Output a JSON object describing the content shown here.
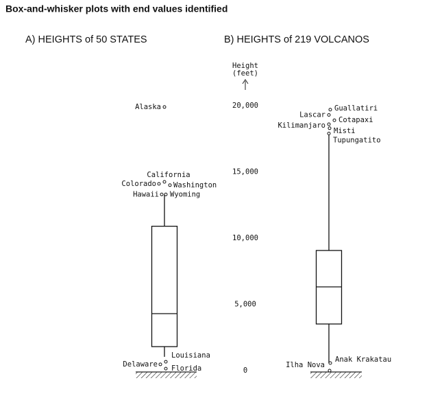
{
  "title": "Box-and-whisker plots with end values identified",
  "chart_data": [
    {
      "type": "box",
      "title": "A) HEIGHTS of 50 STATES",
      "ylim": [
        0,
        20000
      ],
      "lower_whisker": 1040,
      "q1": 1810,
      "median": 4300,
      "q3": 10900,
      "upper_whisker": 13300,
      "points": [
        {
          "name": "Alaska",
          "value": 19900
        },
        {
          "name": "California",
          "value": 14250
        },
        {
          "name": "Colorado",
          "value": 14100
        },
        {
          "name": "Washington",
          "value": 14000
        },
        {
          "name": "Hawaii",
          "value": 13300
        },
        {
          "name": "Wyoming",
          "value": 13300
        },
        {
          "name": "Louisiana",
          "value": 670
        },
        {
          "name": "Delaware",
          "value": 470
        },
        {
          "name": "Florida",
          "value": 150
        }
      ]
    },
    {
      "type": "box",
      "title": "B) HEIGHTS of 219 VOLCANOS",
      "ylim": [
        0,
        20000
      ],
      "ylabel": [
        "Height",
        "(feet)"
      ],
      "yticks": [
        0,
        {
          "value": 5000,
          "label": "5,000"
        },
        {
          "value": 10000,
          "label": "10,000"
        },
        {
          "value": 15000,
          "label": "15,000"
        },
        {
          "value": 20000,
          "label": "20,000"
        }
      ],
      "lower_whisker": 570,
      "q1": 3520,
      "median": 6320,
      "q3": 9070,
      "upper_whisker": 17900,
      "points": [
        {
          "name": "Guallatiri",
          "value": 19700
        },
        {
          "name": "Lascar",
          "value": 19300
        },
        {
          "name": "Cotapaxi",
          "value": 18900
        },
        {
          "name": "Kilimanjaro",
          "value": 18600
        },
        {
          "name": "Misti",
          "value": 18300
        },
        {
          "name": "Tupungatito",
          "value": 17900
        },
        {
          "name": "Anak Krakatau",
          "value": 570
        },
        {
          "name": "Ilha Nova",
          "value": 0
        }
      ]
    }
  ]
}
